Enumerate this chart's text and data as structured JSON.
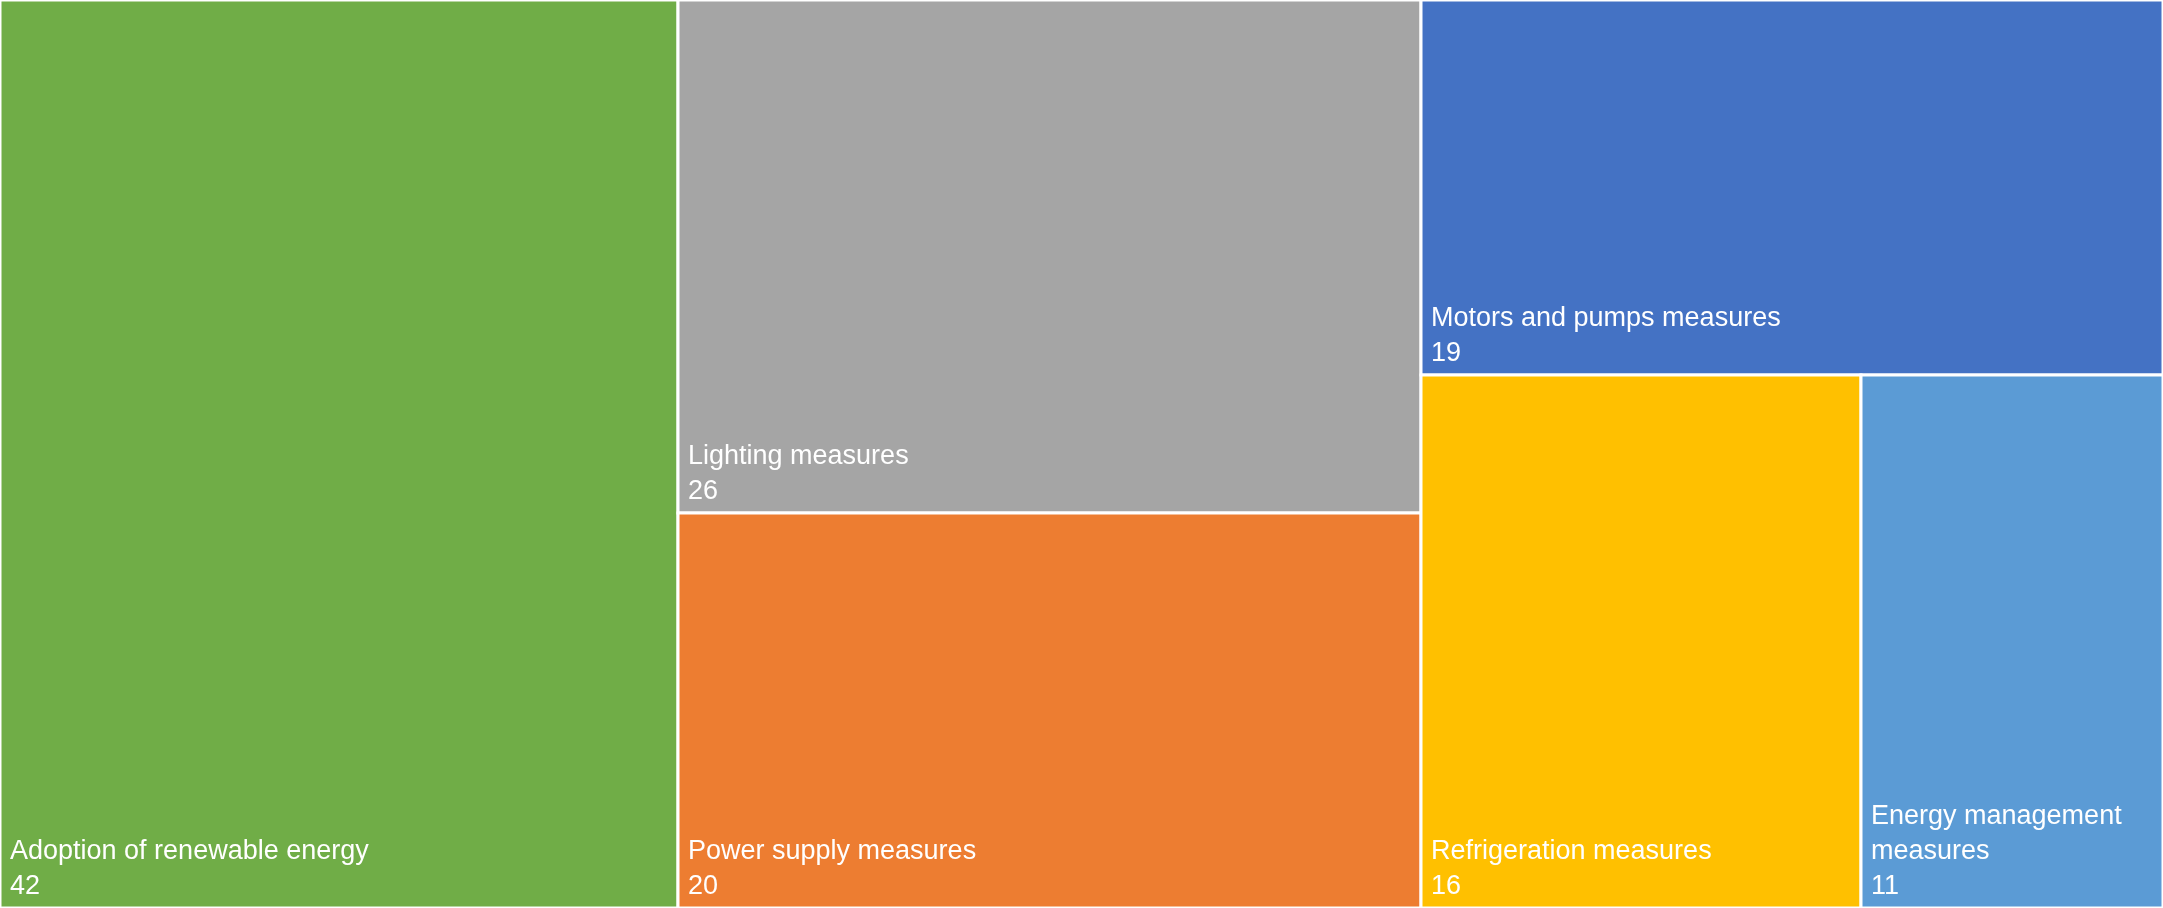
{
  "chart_data": {
    "type": "other",
    "categories": [
      "Adoption of renewable energy",
      "Lighting measures",
      "Power supply measures",
      "Motors and pumps measures",
      "Refrigeration measures",
      "Energy management measures"
    ],
    "values": [
      42,
      26,
      20,
      19,
      16,
      11
    ],
    "colors": [
      "#70ad47",
      "#a5a5a5",
      "#ed7d31",
      "#4472c4",
      "#ffc000",
      "#5b9bd5"
    ],
    "data_labels": true
  }
}
